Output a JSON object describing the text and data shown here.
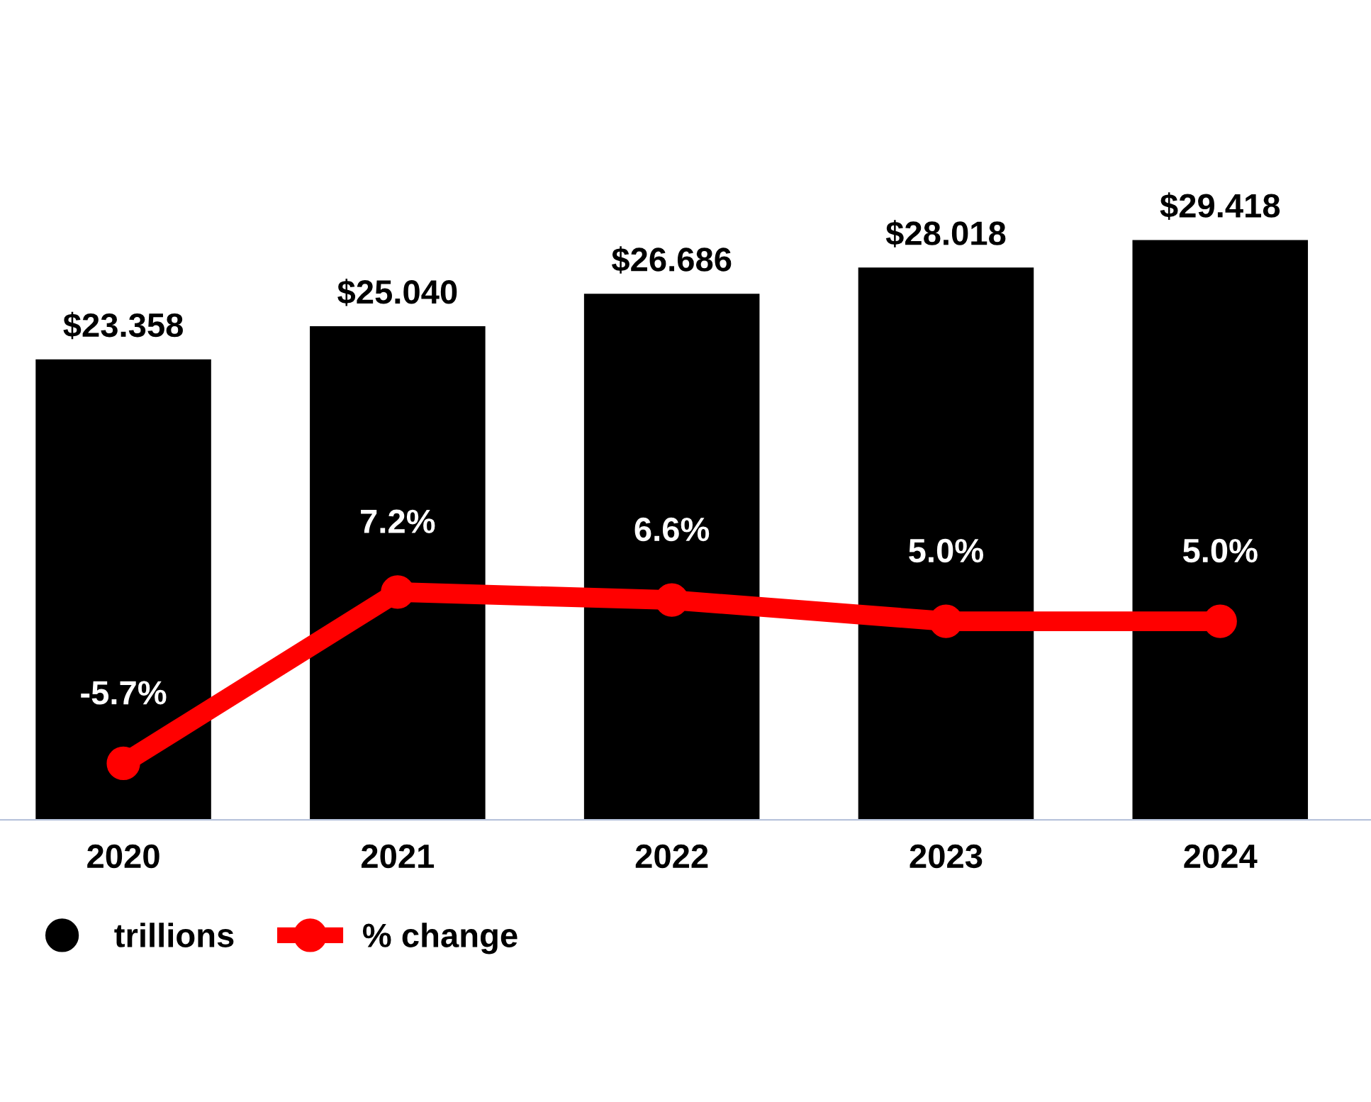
{
  "chart_data": {
    "type": "bar",
    "categories": [
      "2020",
      "2021",
      "2022",
      "2023",
      "2024"
    ],
    "series": [
      {
        "name": "trillions",
        "color": "#000000",
        "values": [
          23.358,
          25.04,
          26.686,
          28.018,
          29.418
        ],
        "value_labels": [
          "$23.358",
          "$25.040",
          "$26.686",
          "$28.018",
          "$29.418"
        ]
      },
      {
        "name": "% change",
        "type": "line",
        "axis": "y2",
        "color": "#ff0000",
        "marker": "circle",
        "line_style": "solid",
        "values": [
          -5.7,
          7.2,
          6.6,
          5.0,
          5.0
        ],
        "value_labels": [
          "-5.7%",
          "7.2%",
          "6.6%",
          "5.0%",
          "5.0%"
        ]
      }
    ],
    "tick_labels": "x",
    "grid": false,
    "legend": "bottom"
  }
}
